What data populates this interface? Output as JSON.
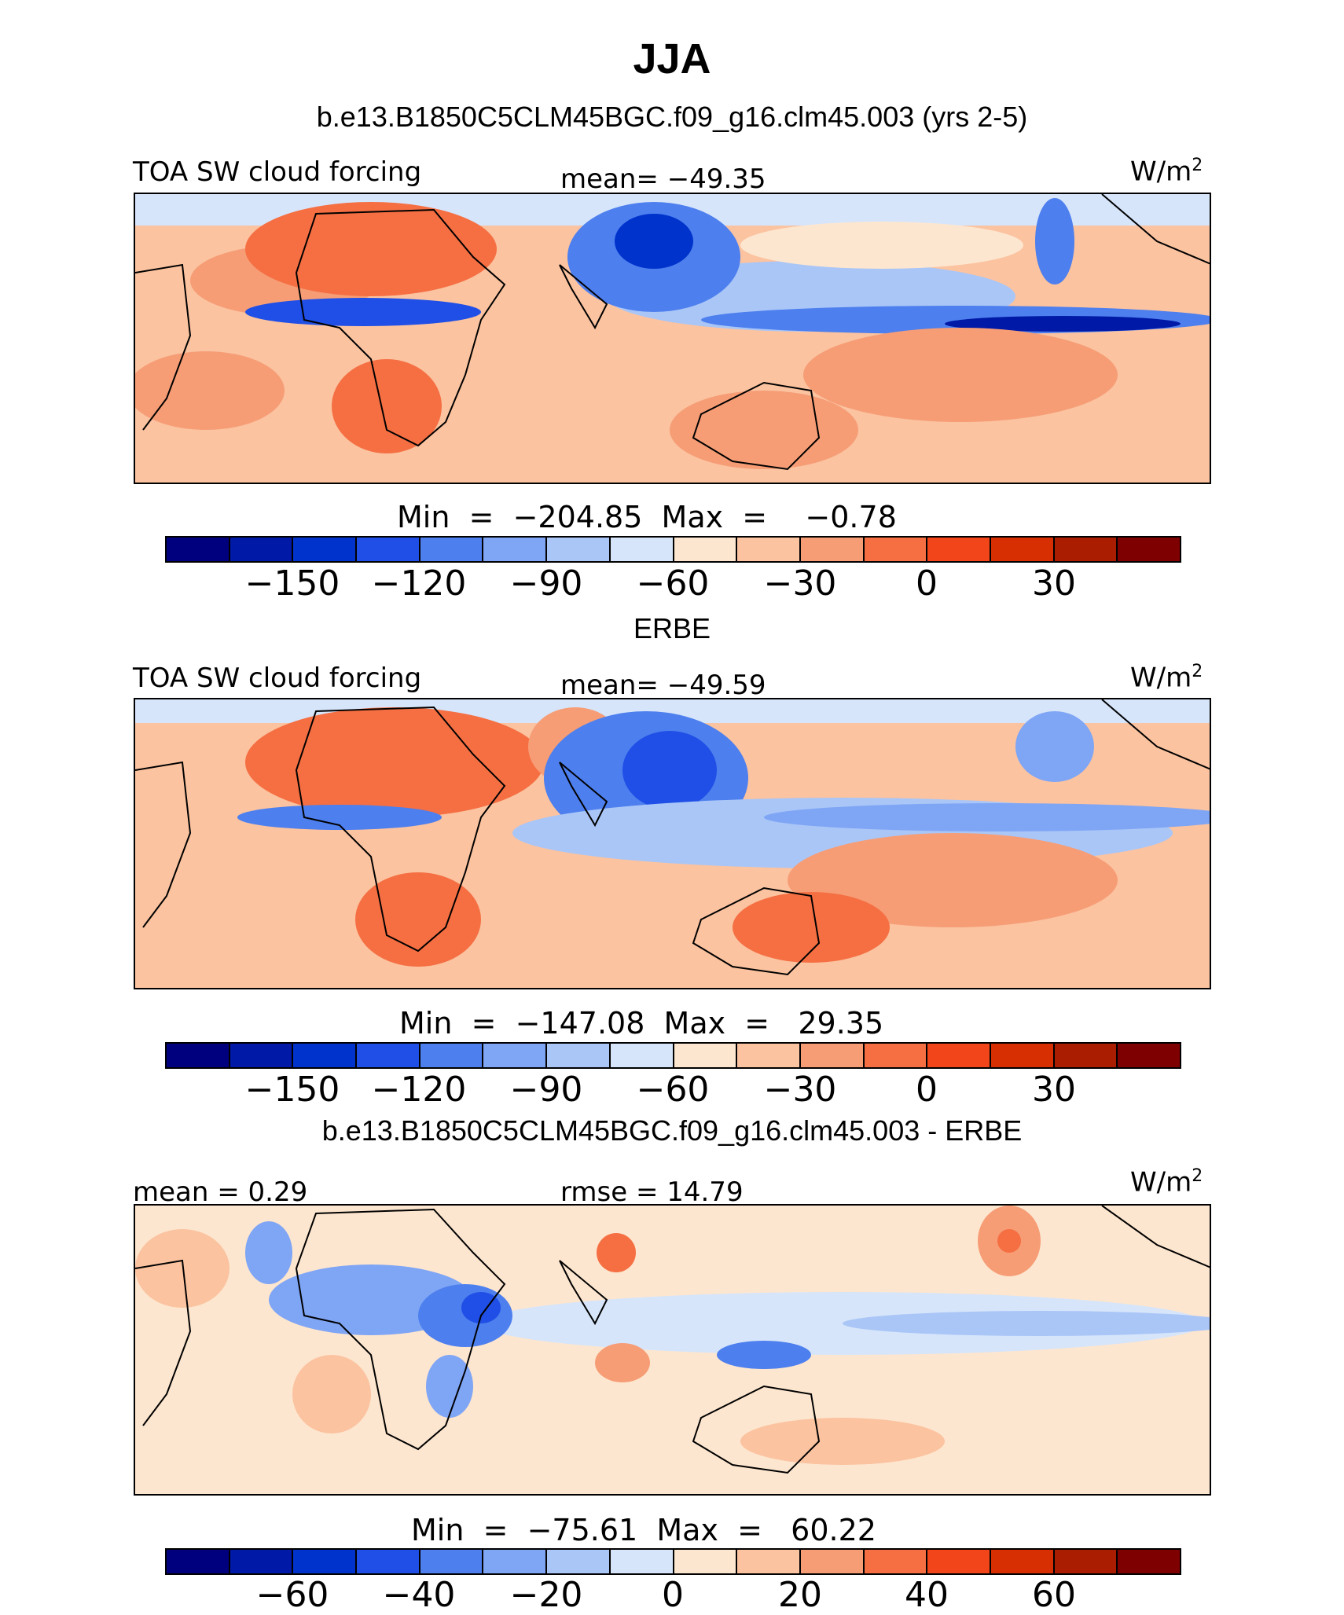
{
  "title": "JJA",
  "colors": {
    "palette": [
      "#00007f",
      "#0019a6",
      "#0033cc",
      "#1f4fe6",
      "#4d7fee",
      "#7fa5f5",
      "#aac6f7",
      "#d6e5fa",
      "#fde6cf",
      "#fbc3a0",
      "#f69d76",
      "#f56f43",
      "#f24519",
      "#d82f02",
      "#aa1d00",
      "#7f0000"
    ],
    "outline": "#000000",
    "background": "#ffffff"
  },
  "panels": [
    {
      "subtitle": "b.e13.B1850C5CLM45BGC.f09_g16.clm45.003 (yrs 2-5)",
      "left_label": "TOA SW cloud forcing",
      "center_label": "mean= −49.35",
      "units_base": "W/m",
      "units_exp": "2",
      "minmax": "Min  =  −204.85  Max  =    −0.78",
      "ticks": [
        "−150",
        "−120",
        "−90",
        "−60",
        "−30",
        "0",
        "30"
      ]
    },
    {
      "subtitle": "ERBE",
      "left_label": "TOA SW cloud forcing",
      "center_label": "mean= −49.59",
      "units_base": "W/m",
      "units_exp": "2",
      "minmax": "Min  =  −147.08  Max  =   29.35",
      "ticks": [
        "−150",
        "−120",
        "−90",
        "−60",
        "−30",
        "0",
        "30"
      ]
    },
    {
      "subtitle": "b.e13.B1850C5CLM45BGC.f09_g16.clm45.003 - ERBE",
      "left_label": "mean =    0.29",
      "center_label": "rmse  =   14.79",
      "units_base": "W/m",
      "units_exp": "2",
      "minmax": "Min  =  −75.61  Max  =   60.22",
      "ticks": [
        "−60",
        "−40",
        "−20",
        "0",
        "20",
        "40",
        "60"
      ]
    }
  ]
}
